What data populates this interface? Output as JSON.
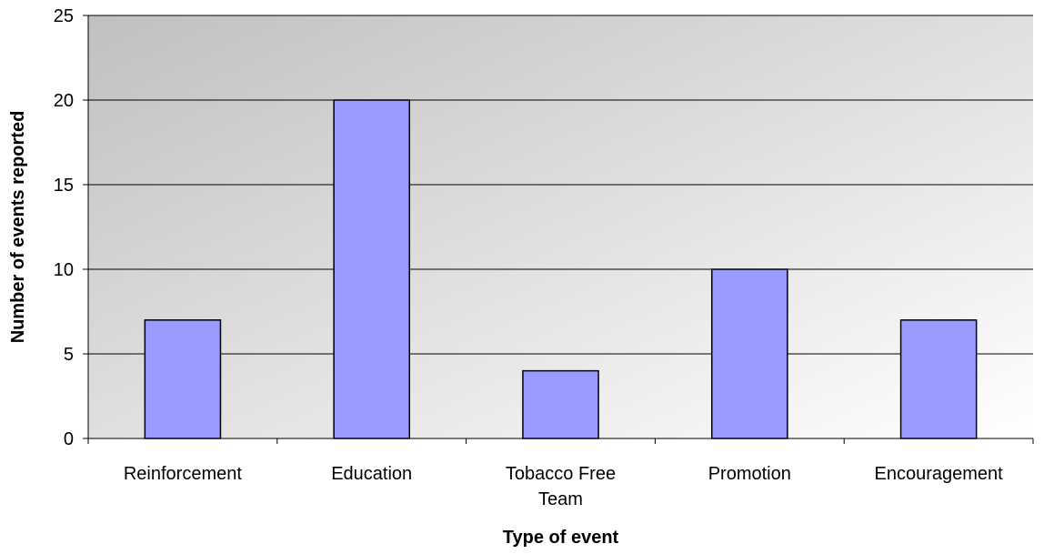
{
  "colors": {
    "bar_fill": "#9999FF",
    "bar_stroke": "#000000",
    "plot_gradient_start": "#C0C0C0",
    "plot_gradient_end": "#FFFFFF",
    "gridline": "#000000"
  },
  "chart_data": {
    "type": "bar",
    "title": "",
    "xlabel": "Type of event",
    "ylabel": "Number of events reported",
    "categories": [
      "Reinforcement",
      "Education",
      "Tobacco Free Team",
      "Promotion",
      "Encouragement"
    ],
    "category_label_lines": [
      [
        "Reinforcement"
      ],
      [
        "Education"
      ],
      [
        "Tobacco Free",
        "Team"
      ],
      [
        "Promotion"
      ],
      [
        "Encouragement"
      ]
    ],
    "values": [
      7,
      20,
      4,
      10,
      7
    ],
    "ylim": [
      0,
      25
    ],
    "yticks": [
      0,
      5,
      10,
      15,
      20,
      25
    ],
    "grid": true,
    "legend": "none"
  }
}
